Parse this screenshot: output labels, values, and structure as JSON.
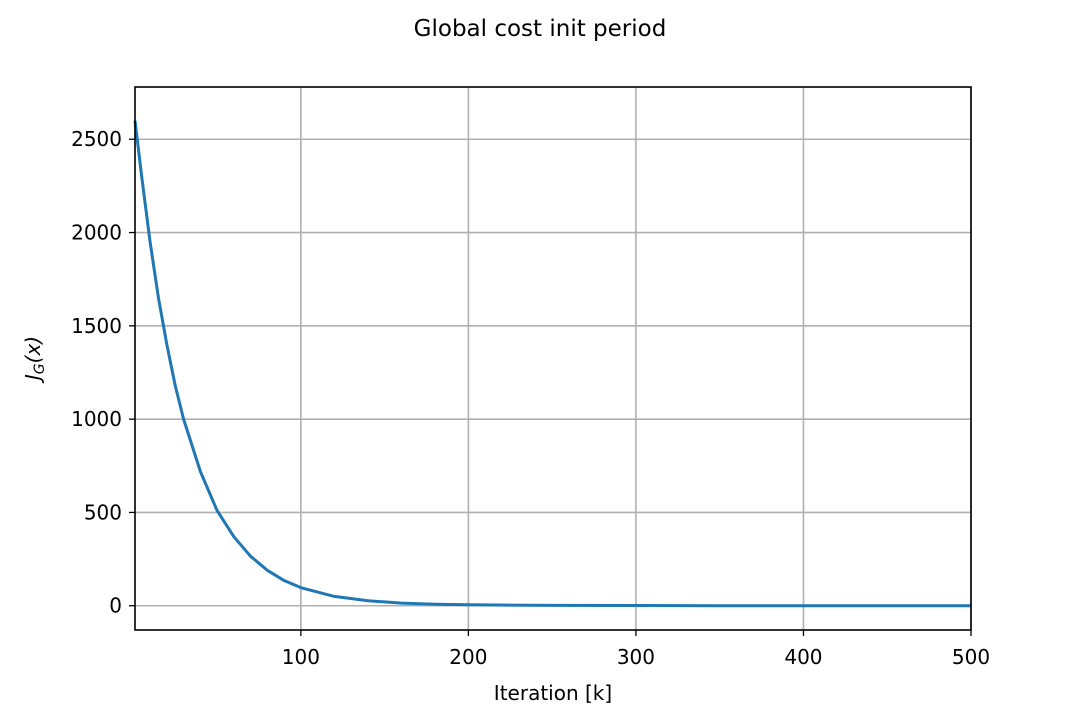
{
  "chart_data": {
    "type": "line",
    "title": "Global cost init period",
    "xlabel": "Iteration [k]",
    "ylabel_main": "J",
    "ylabel_sub": "G",
    "ylabel_arg": "(x)",
    "xlim": [
      1,
      500
    ],
    "ylim": [
      -130,
      2780
    ],
    "xticks": [
      100,
      200,
      300,
      400,
      500
    ],
    "xtick_labels": [
      "100",
      "200",
      "300",
      "400",
      "500"
    ],
    "yticks": [
      0,
      500,
      1000,
      1500,
      2000,
      2500
    ],
    "ytick_labels": [
      "0",
      "500",
      "1000",
      "1500",
      "2000",
      "2500"
    ],
    "grid": true,
    "legend": "none",
    "series": [
      {
        "color": "#1f77b4",
        "x": [
          1,
          5,
          10,
          15,
          20,
          25,
          30,
          40,
          50,
          60,
          70,
          80,
          90,
          100,
          120,
          140,
          160,
          180,
          200,
          250,
          300,
          350,
          400,
          450,
          500
        ],
        "y": [
          2600,
          2300,
          1950,
          1650,
          1400,
          1180,
          1000,
          720,
          510,
          370,
          265,
          190,
          135,
          97,
          50,
          27,
          14,
          8,
          5,
          2,
          1,
          0,
          0,
          0,
          0
        ]
      }
    ]
  }
}
